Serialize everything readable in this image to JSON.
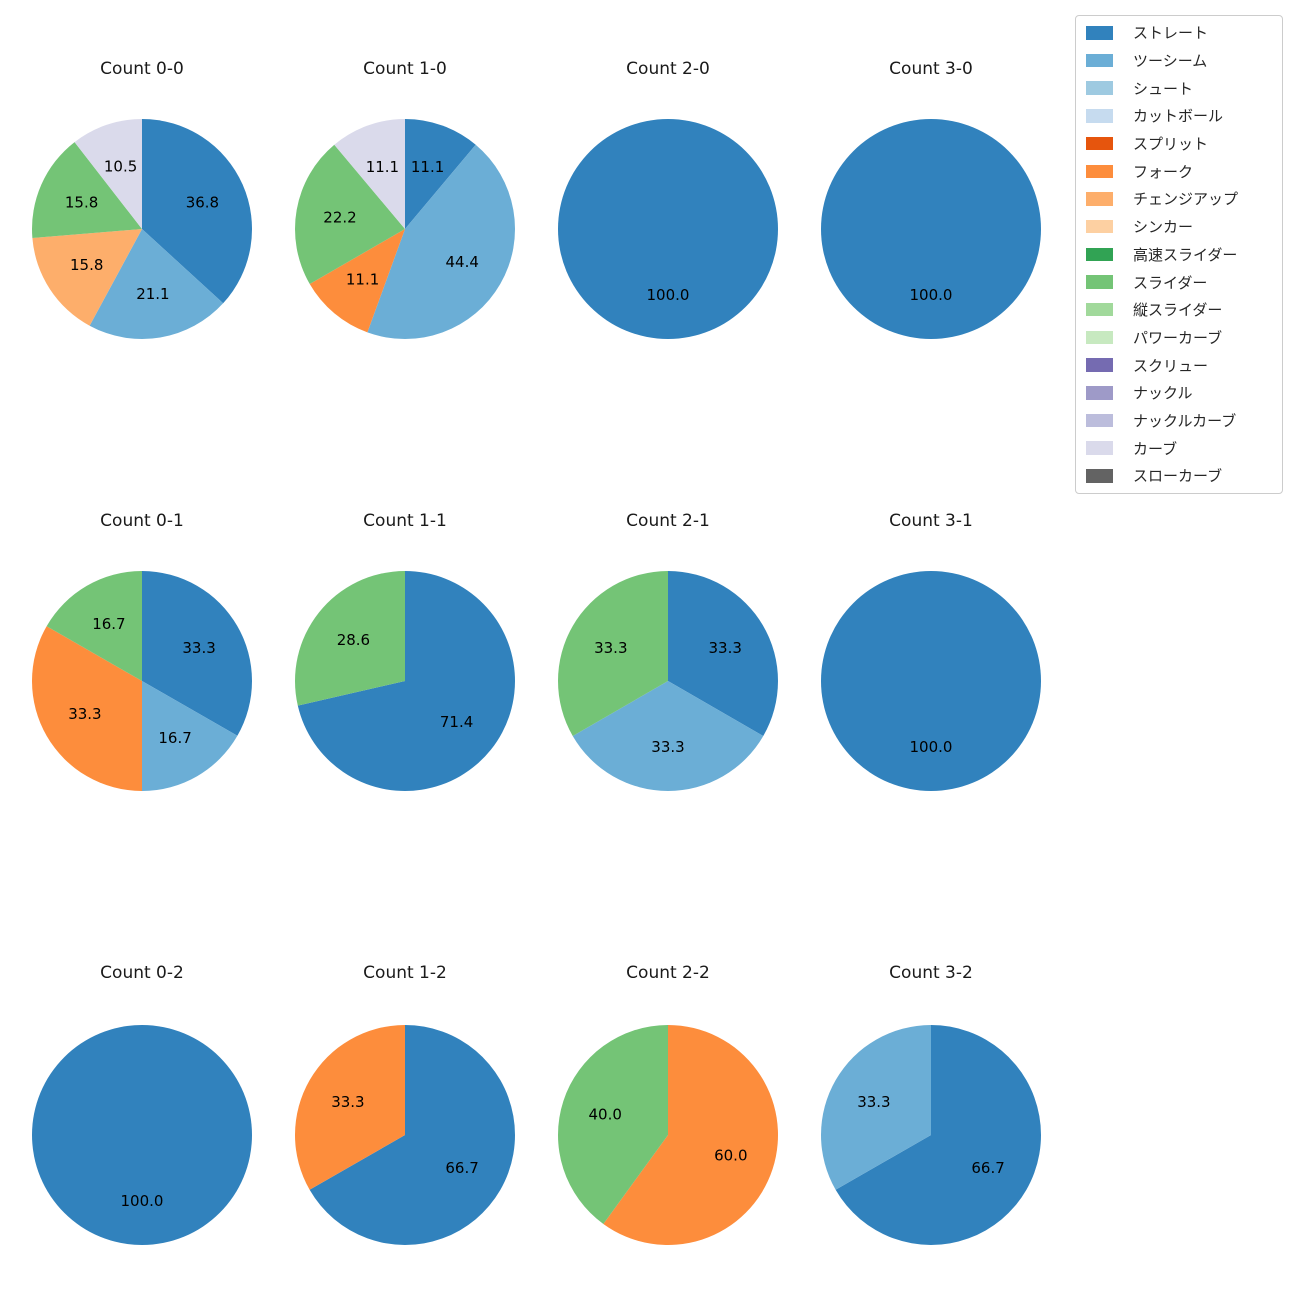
{
  "figure": {
    "background": "#ffffff"
  },
  "legend": {
    "position": "top-right",
    "items": [
      {
        "label": "ストレート",
        "color": "#3182bd"
      },
      {
        "label": "ツーシーム",
        "color": "#6baed6"
      },
      {
        "label": "シュート",
        "color": "#9ecae1"
      },
      {
        "label": "カットボール",
        "color": "#c6dbef"
      },
      {
        "label": "スプリット",
        "color": "#e6550d"
      },
      {
        "label": "フォーク",
        "color": "#fd8d3c"
      },
      {
        "label": "チェンジアップ",
        "color": "#fdae6b"
      },
      {
        "label": "シンカー",
        "color": "#fdd0a2"
      },
      {
        "label": "高速スライダー",
        "color": "#31a354"
      },
      {
        "label": "スライダー",
        "color": "#74c476"
      },
      {
        "label": "縦スライダー",
        "color": "#a1d99b"
      },
      {
        "label": "パワーカーブ",
        "color": "#c7e9c0"
      },
      {
        "label": "スクリュー",
        "color": "#756bb1"
      },
      {
        "label": "ナックル",
        "color": "#9e9ac8"
      },
      {
        "label": "ナックルカーブ",
        "color": "#bcbddc"
      },
      {
        "label": "カーブ",
        "color": "#dadaeb"
      },
      {
        "label": "スローカーブ",
        "color": "#636363"
      }
    ]
  },
  "chart_data": [
    {
      "type": "pie",
      "title": "Count 0-0",
      "start_angle": 90,
      "direction": "clockwise",
      "slices": [
        {
          "label": "ストレート",
          "value": 36.8,
          "pct": "36.8"
        },
        {
          "label": "ツーシーム",
          "value": 21.1,
          "pct": "21.1"
        },
        {
          "label": "チェンジアップ",
          "value": 15.8,
          "pct": "15.8"
        },
        {
          "label": "スライダー",
          "value": 15.8,
          "pct": "15.8"
        },
        {
          "label": "カーブ",
          "value": 10.5,
          "pct": "10.5"
        }
      ]
    },
    {
      "type": "pie",
      "title": "Count 1-0",
      "start_angle": 90,
      "direction": "clockwise",
      "slices": [
        {
          "label": "ストレート",
          "value": 11.1,
          "pct": "11.1"
        },
        {
          "label": "ツーシーム",
          "value": 44.4,
          "pct": "44.4"
        },
        {
          "label": "フォーク",
          "value": 11.1,
          "pct": "11.1"
        },
        {
          "label": "スライダー",
          "value": 22.2,
          "pct": "22.2"
        },
        {
          "label": "カーブ",
          "value": 11.1,
          "pct": "11.1"
        }
      ]
    },
    {
      "type": "pie",
      "title": "Count 2-0",
      "start_angle": 90,
      "direction": "clockwise",
      "slices": [
        {
          "label": "ストレート",
          "value": 100.0,
          "pct": "100.0"
        }
      ]
    },
    {
      "type": "pie",
      "title": "Count 3-0",
      "start_angle": 90,
      "direction": "clockwise",
      "slices": [
        {
          "label": "ストレート",
          "value": 100.0,
          "pct": "100.0"
        }
      ]
    },
    {
      "type": "pie",
      "title": "Count 0-1",
      "start_angle": 90,
      "direction": "clockwise",
      "slices": [
        {
          "label": "ストレート",
          "value": 33.3,
          "pct": "33.3"
        },
        {
          "label": "ツーシーム",
          "value": 16.7,
          "pct": "16.7"
        },
        {
          "label": "フォーク",
          "value": 33.3,
          "pct": "33.3"
        },
        {
          "label": "スライダー",
          "value": 16.7,
          "pct": "16.7"
        }
      ]
    },
    {
      "type": "pie",
      "title": "Count 1-1",
      "start_angle": 90,
      "direction": "clockwise",
      "slices": [
        {
          "label": "ストレート",
          "value": 71.4,
          "pct": "71.4"
        },
        {
          "label": "スライダー",
          "value": 28.6,
          "pct": "28.6"
        }
      ]
    },
    {
      "type": "pie",
      "title": "Count 2-1",
      "start_angle": 90,
      "direction": "clockwise",
      "slices": [
        {
          "label": "ストレート",
          "value": 33.3,
          "pct": "33.3"
        },
        {
          "label": "ツーシーム",
          "value": 33.3,
          "pct": "33.3"
        },
        {
          "label": "スライダー",
          "value": 33.3,
          "pct": "33.3"
        }
      ]
    },
    {
      "type": "pie",
      "title": "Count 3-1",
      "start_angle": 90,
      "direction": "clockwise",
      "slices": [
        {
          "label": "ストレート",
          "value": 100.0,
          "pct": "100.0"
        }
      ]
    },
    {
      "type": "pie",
      "title": "Count 0-2",
      "start_angle": 90,
      "direction": "clockwise",
      "slices": [
        {
          "label": "ストレート",
          "value": 100.0,
          "pct": "100.0"
        }
      ]
    },
    {
      "type": "pie",
      "title": "Count 1-2",
      "start_angle": 90,
      "direction": "clockwise",
      "slices": [
        {
          "label": "ストレート",
          "value": 66.7,
          "pct": "66.7"
        },
        {
          "label": "フォーク",
          "value": 33.3,
          "pct": "33.3"
        }
      ]
    },
    {
      "type": "pie",
      "title": "Count 2-2",
      "start_angle": 90,
      "direction": "clockwise",
      "slices": [
        {
          "label": "フォーク",
          "value": 60.0,
          "pct": "60.0"
        },
        {
          "label": "スライダー",
          "value": 40.0,
          "pct": "40.0"
        }
      ]
    },
    {
      "type": "pie",
      "title": "Count 3-2",
      "start_angle": 90,
      "direction": "clockwise",
      "slices": [
        {
          "label": "ストレート",
          "value": 66.7,
          "pct": "66.7"
        },
        {
          "label": "ツーシーム",
          "value": 33.3,
          "pct": "33.3"
        }
      ]
    }
  ]
}
